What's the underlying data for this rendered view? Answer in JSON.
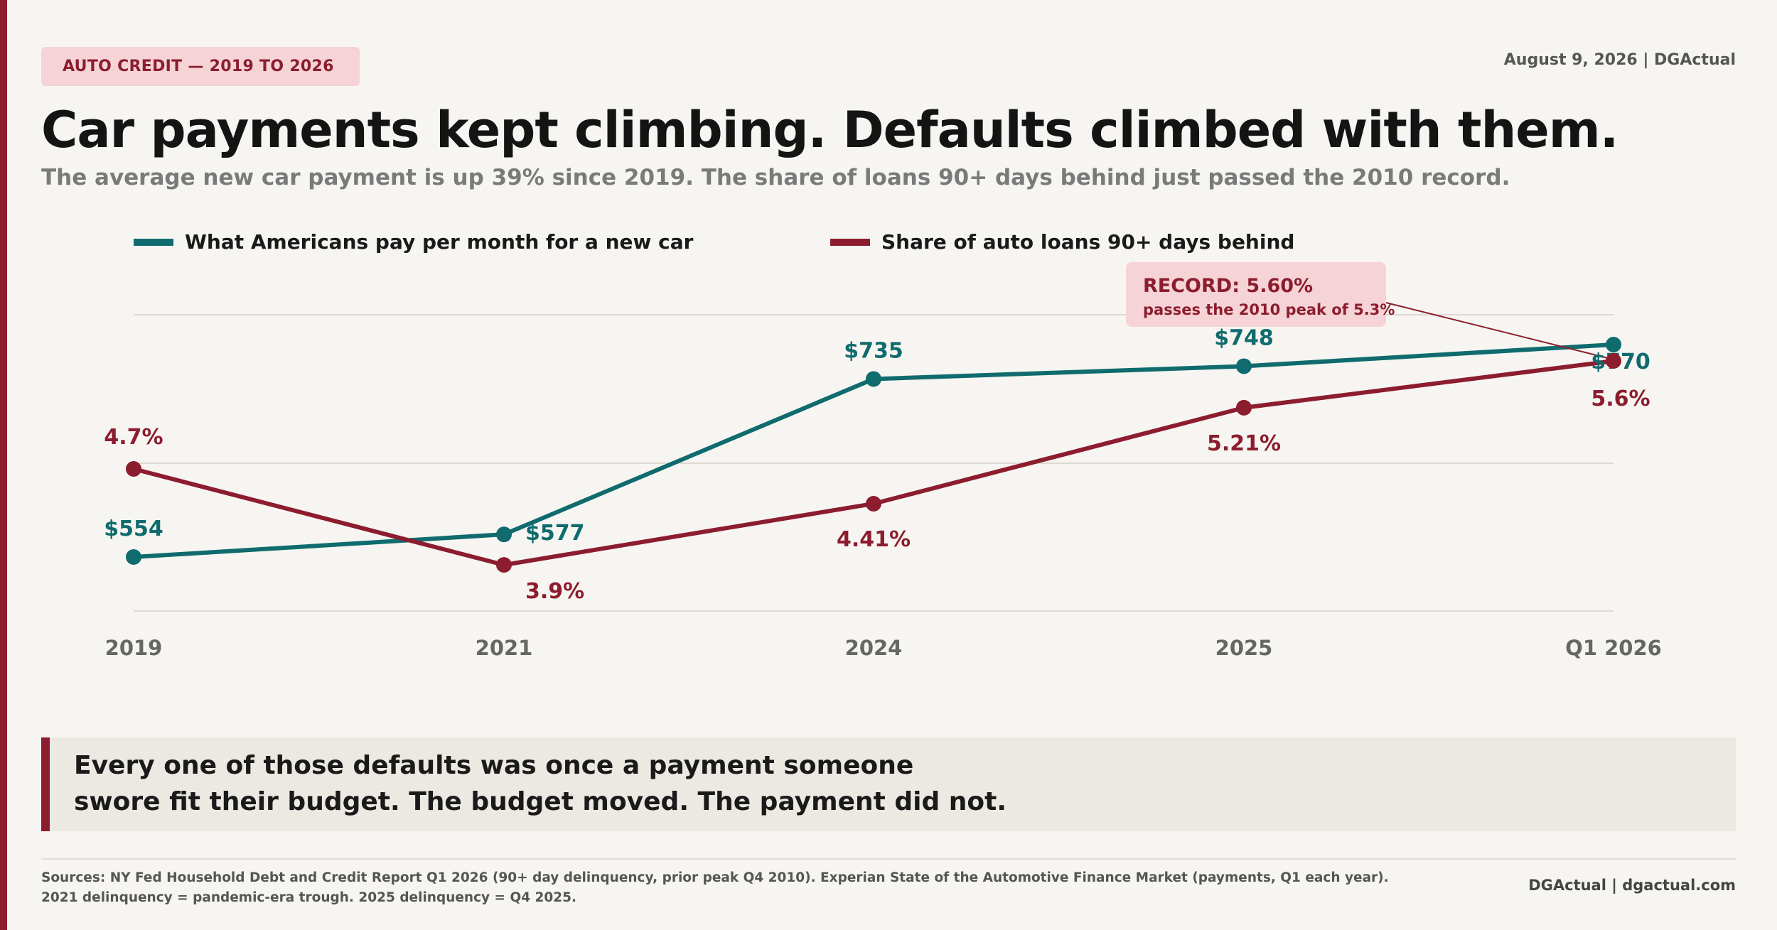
{
  "header": {
    "kicker": "AUTO CREDIT — 2019 TO 2026",
    "dateline": "August 9, 2026  |  DGActual",
    "headline": "Car payments kept climbing. Defaults climbed with them.",
    "subhead": "The average new car payment is up 39% since 2019. The share of loans 90+ days behind just passed the 2010 record."
  },
  "chart_data": {
    "type": "line",
    "categories": [
      "2019",
      "2021",
      "2024",
      "2025",
      "Q1 2026"
    ],
    "series": [
      {
        "name": "What Americans pay per month for a new car",
        "color": "#0f6b6e",
        "values": [
          554,
          577,
          735,
          748,
          770
        ],
        "labels": [
          "$554",
          "$577",
          "$735",
          "$748",
          "$770"
        ]
      },
      {
        "name": "Share of auto loans 90+ days behind",
        "color": "#8c1d2e",
        "values": [
          4.7,
          3.9,
          4.41,
          5.21,
          5.6
        ],
        "labels": [
          "4.7%",
          "3.9%",
          "4.41%",
          "5.21%",
          "5.6%"
        ]
      }
    ],
    "annotation": {
      "title": "RECORD: 5.60%",
      "text": "passes the 2010 peak of 5.3%"
    },
    "grid": true,
    "legend": "top"
  },
  "takeaway": {
    "line1": "Every one of those defaults was once a payment someone",
    "line2": "swore fit their budget. The budget moved. The payment did not."
  },
  "footer": {
    "sources_line1": "Sources: NY Fed Household Debt and Credit Report Q1 2026 (90+ day delinquency, prior peak Q4 2010). Experian State of the Automotive Finance Market (payments, Q1 each year).",
    "sources_line2": "2021 delinquency = pandemic-era trough. 2025 delinquency = Q4 2025.",
    "credit": "DGActual  |  dgactual.com"
  }
}
